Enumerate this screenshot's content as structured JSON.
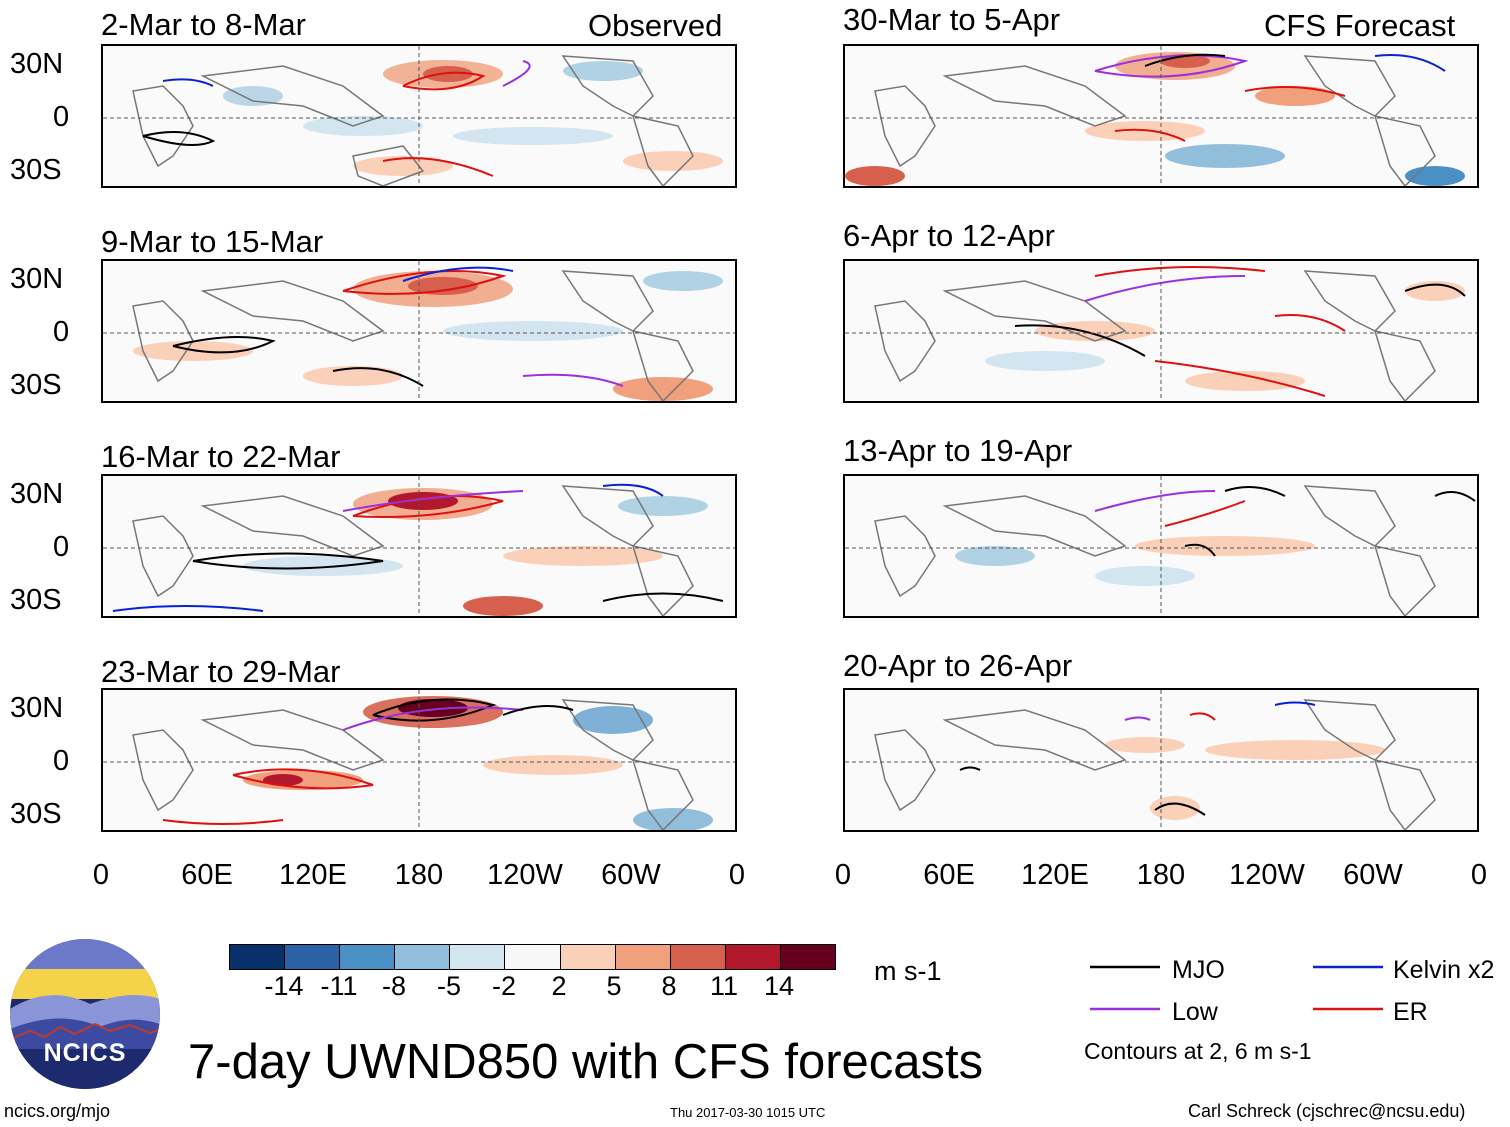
{
  "column_headers": {
    "left": "Observed",
    "right": "CFS Forecast"
  },
  "panels": [
    {
      "date": "2-Mar to 8-Mar",
      "kind": "observed"
    },
    {
      "date": "9-Mar to 15-Mar",
      "kind": "observed"
    },
    {
      "date": "16-Mar to 22-Mar",
      "kind": "observed"
    },
    {
      "date": "23-Mar to 29-Mar",
      "kind": "observed"
    },
    {
      "date": "30-Mar to 5-Apr",
      "kind": "forecast"
    },
    {
      "date": "6-Apr to 12-Apr",
      "kind": "forecast"
    },
    {
      "date": "13-Apr to 19-Apr",
      "kind": "forecast"
    },
    {
      "date": "20-Apr to 26-Apr",
      "kind": "forecast"
    }
  ],
  "lat_labels": [
    "30N",
    "0",
    "30S"
  ],
  "lon_labels": [
    "0",
    "60E",
    "120E",
    "180",
    "120W",
    "60W",
    "0"
  ],
  "colorbar": {
    "labels": [
      "-14",
      "-11",
      "-8",
      "-5",
      "-2",
      "2",
      "5",
      "8",
      "11",
      "14"
    ],
    "colors": [
      "#08306b",
      "#2a62a5",
      "#4a90c4",
      "#91bfdb",
      "#d2e5f1",
      "#f7f7f7",
      "#fbd0b9",
      "#f0a07c",
      "#d6604d",
      "#b2182b",
      "#67001f"
    ],
    "units": "m s-1"
  },
  "legend": {
    "items": [
      {
        "label": "MJO",
        "color": "#000000"
      },
      {
        "label": "Kelvin x2",
        "color": "#0a22d6"
      },
      {
        "label": "Low",
        "color": "#9b30e0"
      },
      {
        "label": "ER",
        "color": "#e01010"
      }
    ],
    "note": "Contours at 2, 6 m s-1"
  },
  "logo": {
    "text": "NCICS"
  },
  "title": "7-day UWND850 with CFS forecasts",
  "footer": {
    "url": "ncics.org/mjo",
    "timestamp": "Thu 2017-03-30 1015 UTC",
    "credit": "Carl Schreck (cjschrec@ncsu.edu)"
  }
}
